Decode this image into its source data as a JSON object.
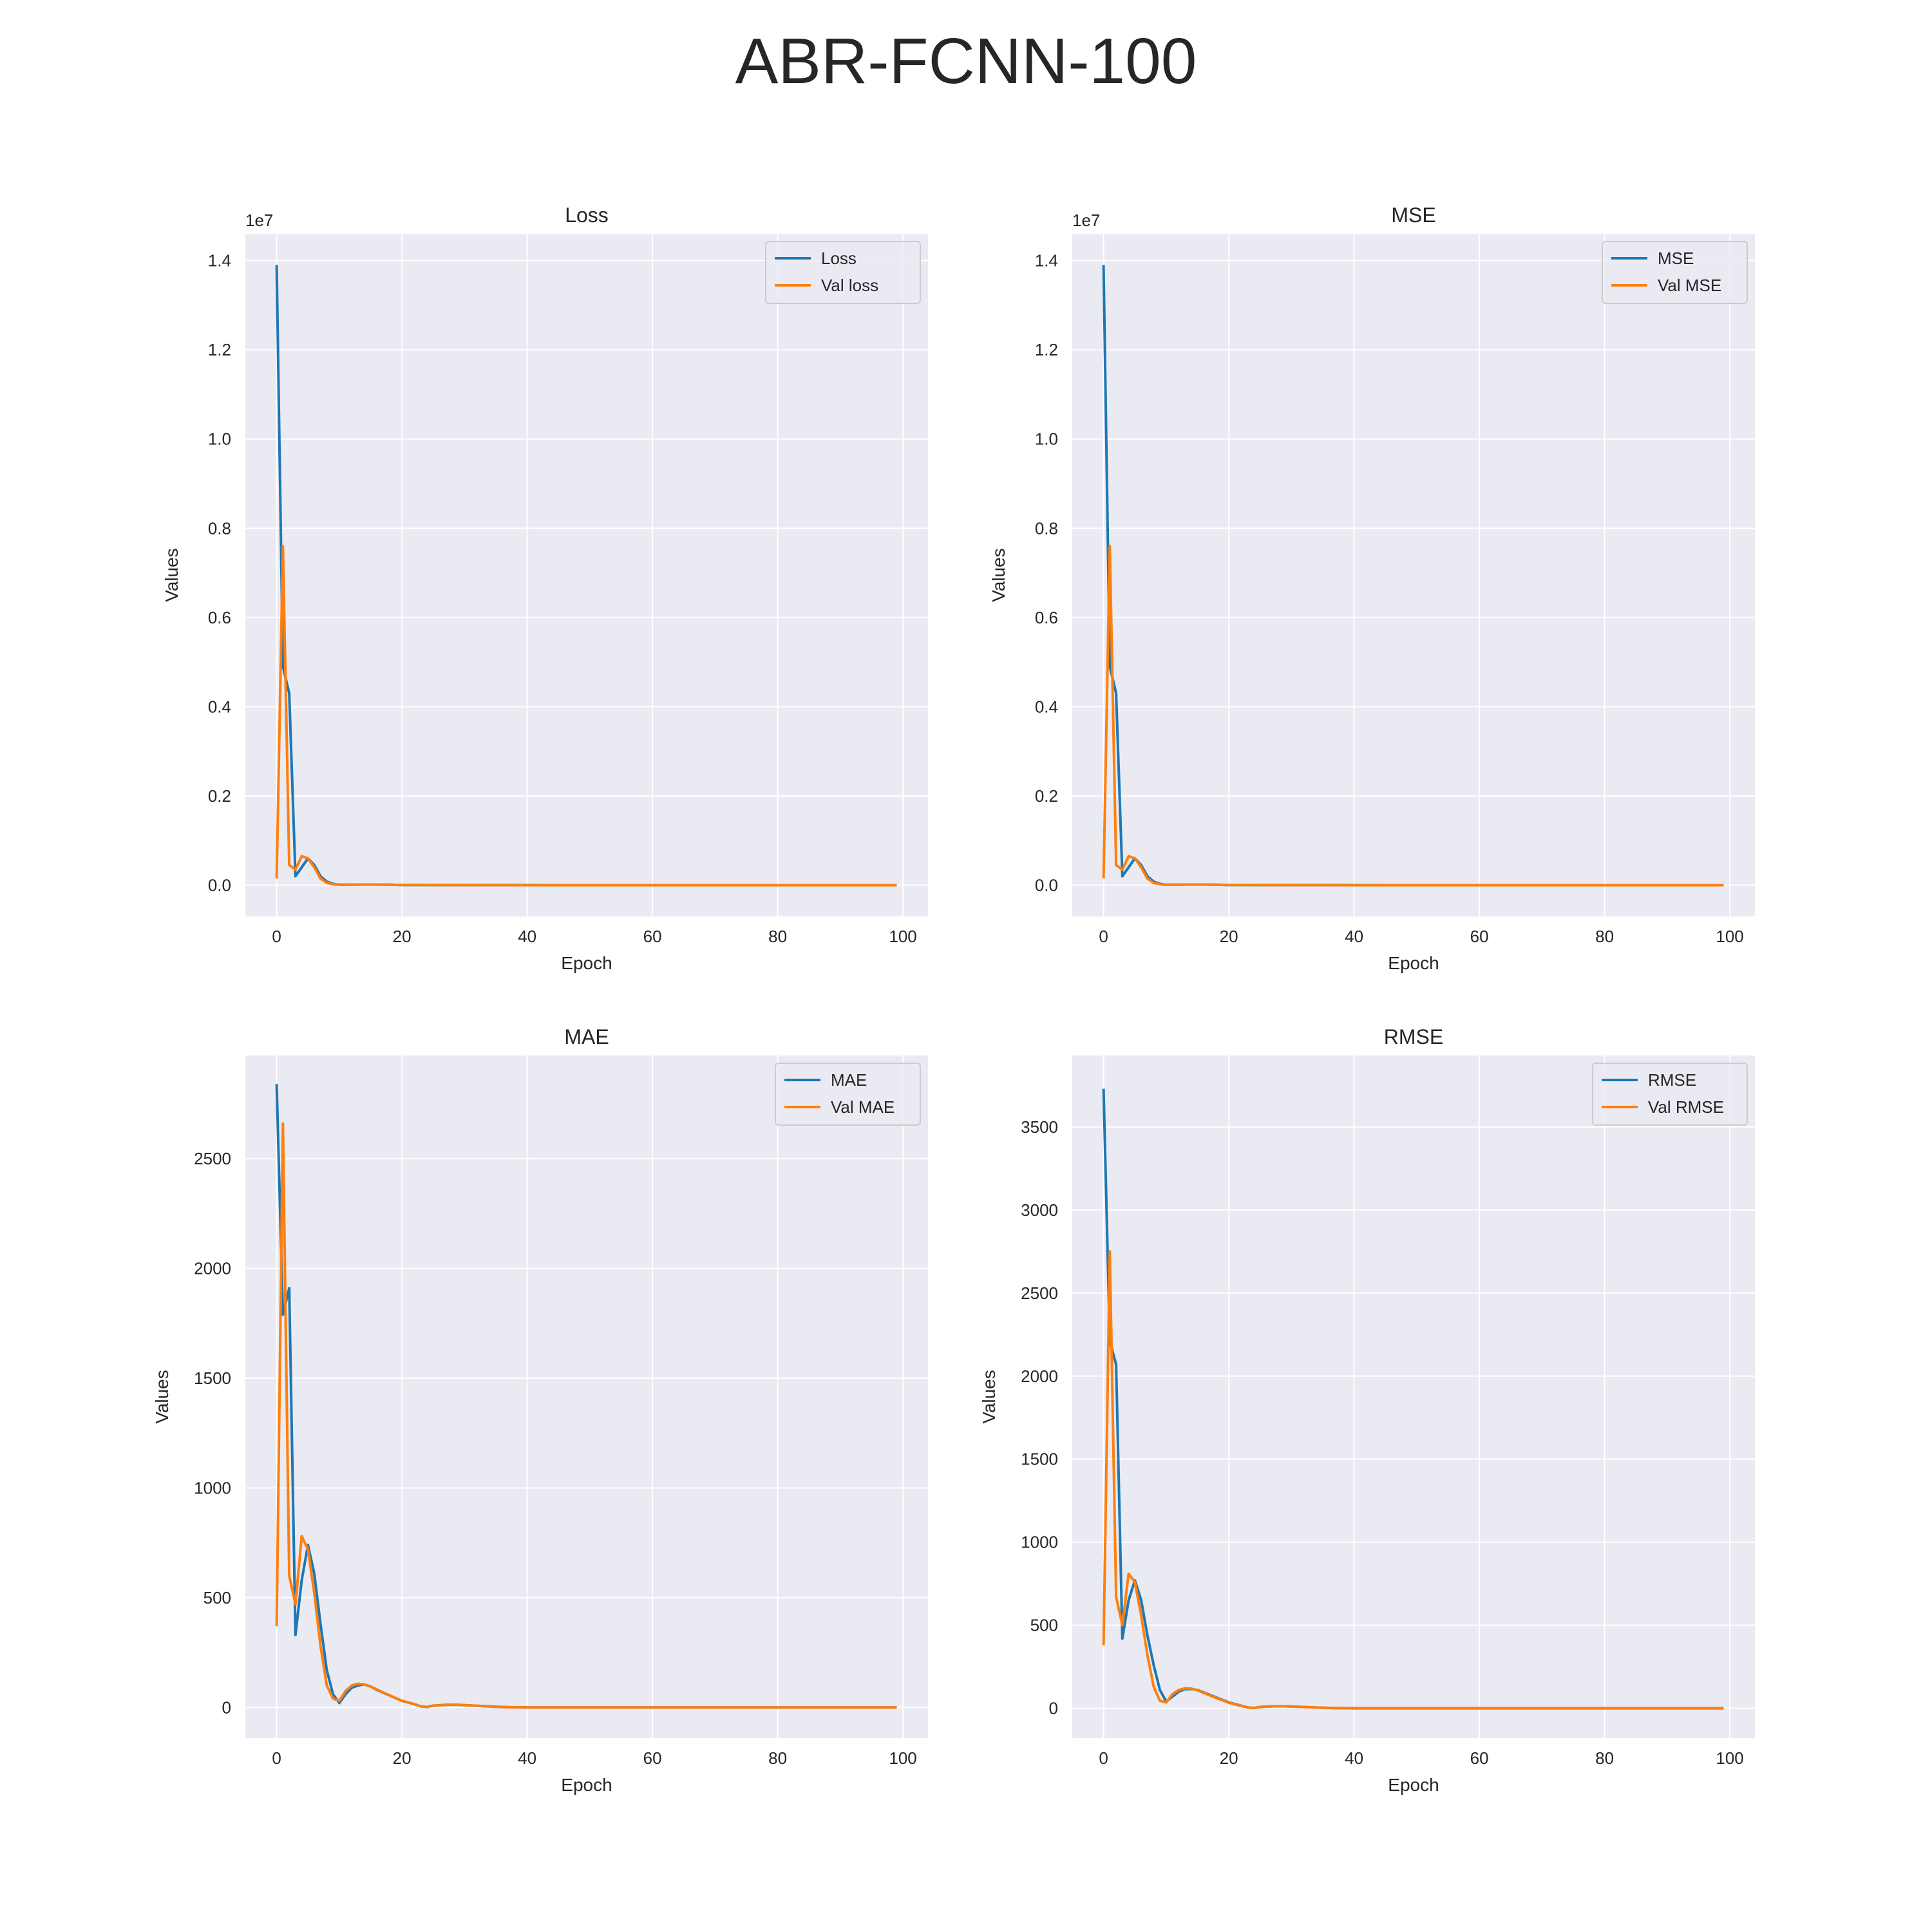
{
  "figure": {
    "suptitle": "ABR-FCNN-100"
  },
  "colors": {
    "train": "#1f77b4",
    "val": "#ff7f0e",
    "plot_bg": "#eaeaf2",
    "grid": "#ffffff"
  },
  "chart_data": [
    {
      "id": "loss",
      "type": "line",
      "title": "Loss",
      "xlabel": "Epoch",
      "ylabel": "Values",
      "offset_text": "1e7",
      "xlim": [
        -5,
        104
      ],
      "ylim": [
        -0.07,
        1.46
      ],
      "xticks": [
        0,
        20,
        40,
        60,
        80,
        100
      ],
      "xtick_labels": [
        "0",
        "20",
        "40",
        "60",
        "80",
        "100"
      ],
      "yticks": [
        0,
        0.2,
        0.4,
        0.6,
        0.8,
        1.0,
        1.2,
        1.4
      ],
      "ytick_labels": [
        "0.0",
        "0.2",
        "0.4",
        "0.6",
        "0.8",
        "1.0",
        "1.2",
        "1.4"
      ],
      "grid": true,
      "legend_position": "top-right",
      "series": [
        {
          "name": "Loss",
          "role": "train",
          "points": [
            [
              0,
              1.39
            ],
            [
              1,
              0.49
            ],
            [
              2,
              0.43
            ],
            [
              3,
              0.02
            ],
            [
              4,
              0.04
            ],
            [
              5,
              0.06
            ],
            [
              6,
              0.045
            ],
            [
              7,
              0.02
            ],
            [
              8,
              0.008
            ],
            [
              9,
              0.003
            ],
            [
              10,
              0.001
            ],
            [
              12,
              0.001
            ],
            [
              15,
              0.0015
            ],
            [
              18,
              0.001
            ],
            [
              20,
              0.0003
            ],
            [
              30,
              0.0001
            ],
            [
              50,
              0
            ],
            [
              99,
              0
            ]
          ]
        },
        {
          "name": "Val loss",
          "role": "val",
          "points": [
            [
              0,
              0.015
            ],
            [
              1,
              0.76
            ],
            [
              2,
              0.045
            ],
            [
              3,
              0.035
            ],
            [
              4,
              0.065
            ],
            [
              5,
              0.06
            ],
            [
              6,
              0.04
            ],
            [
              7,
              0.015
            ],
            [
              8,
              0.005
            ],
            [
              9,
              0.002
            ],
            [
              10,
              0.001
            ],
            [
              12,
              0.0015
            ],
            [
              15,
              0.0015
            ],
            [
              18,
              0.001
            ],
            [
              20,
              0.0003
            ],
            [
              30,
              0.0001
            ],
            [
              50,
              0
            ],
            [
              99,
              0
            ]
          ]
        }
      ]
    },
    {
      "id": "mse",
      "type": "line",
      "title": "MSE",
      "xlabel": "Epoch",
      "ylabel": "Values",
      "offset_text": "1e7",
      "xlim": [
        -5,
        104
      ],
      "ylim": [
        -0.07,
        1.46
      ],
      "xticks": [
        0,
        20,
        40,
        60,
        80,
        100
      ],
      "xtick_labels": [
        "0",
        "20",
        "40",
        "60",
        "80",
        "100"
      ],
      "yticks": [
        0,
        0.2,
        0.4,
        0.6,
        0.8,
        1.0,
        1.2,
        1.4
      ],
      "ytick_labels": [
        "0.0",
        "0.2",
        "0.4",
        "0.6",
        "0.8",
        "1.0",
        "1.2",
        "1.4"
      ],
      "grid": true,
      "legend_position": "top-right",
      "series": [
        {
          "name": "MSE",
          "role": "train",
          "points": [
            [
              0,
              1.39
            ],
            [
              1,
              0.49
            ],
            [
              2,
              0.43
            ],
            [
              3,
              0.02
            ],
            [
              4,
              0.04
            ],
            [
              5,
              0.06
            ],
            [
              6,
              0.045
            ],
            [
              7,
              0.02
            ],
            [
              8,
              0.008
            ],
            [
              9,
              0.003
            ],
            [
              10,
              0.001
            ],
            [
              12,
              0.001
            ],
            [
              15,
              0.0015
            ],
            [
              18,
              0.001
            ],
            [
              20,
              0.0003
            ],
            [
              30,
              0.0001
            ],
            [
              50,
              0
            ],
            [
              99,
              0
            ]
          ]
        },
        {
          "name": "Val MSE",
          "role": "val",
          "points": [
            [
              0,
              0.015
            ],
            [
              1,
              0.76
            ],
            [
              2,
              0.045
            ],
            [
              3,
              0.035
            ],
            [
              4,
              0.065
            ],
            [
              5,
              0.06
            ],
            [
              6,
              0.04
            ],
            [
              7,
              0.015
            ],
            [
              8,
              0.005
            ],
            [
              9,
              0.002
            ],
            [
              10,
              0.001
            ],
            [
              12,
              0.0015
            ],
            [
              15,
              0.0015
            ],
            [
              18,
              0.001
            ],
            [
              20,
              0.0003
            ],
            [
              30,
              0.0001
            ],
            [
              50,
              0
            ],
            [
              99,
              0
            ]
          ]
        }
      ]
    },
    {
      "id": "mae",
      "type": "line",
      "title": "MAE",
      "xlabel": "Epoch",
      "ylabel": "Values",
      "offset_text": "",
      "xlim": [
        -5,
        104
      ],
      "ylim": [
        -140,
        2970
      ],
      "xticks": [
        0,
        20,
        40,
        60,
        80,
        100
      ],
      "xtick_labels": [
        "0",
        "20",
        "40",
        "60",
        "80",
        "100"
      ],
      "yticks": [
        0,
        500,
        1000,
        1500,
        2000,
        2500
      ],
      "ytick_labels": [
        "0",
        "500",
        "1000",
        "1500",
        "2000",
        "2500"
      ],
      "grid": true,
      "legend_position": "top-right",
      "series": [
        {
          "name": "MAE",
          "role": "train",
          "points": [
            [
              0,
              2840
            ],
            [
              1,
              1790
            ],
            [
              2,
              1910
            ],
            [
              3,
              330
            ],
            [
              4,
              580
            ],
            [
              5,
              740
            ],
            [
              6,
              610
            ],
            [
              7,
              380
            ],
            [
              8,
              170
            ],
            [
              9,
              60
            ],
            [
              10,
              20
            ],
            [
              11,
              60
            ],
            [
              12,
              90
            ],
            [
              13,
              100
            ],
            [
              14,
              105
            ],
            [
              15,
              95
            ],
            [
              16,
              80
            ],
            [
              18,
              55
            ],
            [
              20,
              30
            ],
            [
              22,
              15
            ],
            [
              23,
              5
            ],
            [
              24,
              2
            ],
            [
              25,
              8
            ],
            [
              27,
              12
            ],
            [
              29,
              12
            ],
            [
              31,
              9
            ],
            [
              33,
              6
            ],
            [
              35,
              3
            ],
            [
              37,
              1
            ],
            [
              40,
              0
            ],
            [
              99,
              0
            ]
          ]
        },
        {
          "name": "Val MAE",
          "role": "val",
          "points": [
            [
              0,
              370
            ],
            [
              1,
              2660
            ],
            [
              2,
              600
            ],
            [
              3,
              470
            ],
            [
              4,
              780
            ],
            [
              5,
              720
            ],
            [
              6,
              520
            ],
            [
              7,
              280
            ],
            [
              8,
              100
            ],
            [
              9,
              40
            ],
            [
              10,
              30
            ],
            [
              11,
              75
            ],
            [
              12,
              100
            ],
            [
              13,
              108
            ],
            [
              14,
              105
            ],
            [
              15,
              95
            ],
            [
              16,
              82
            ],
            [
              18,
              55
            ],
            [
              20,
              30
            ],
            [
              22,
              15
            ],
            [
              23,
              5
            ],
            [
              24,
              2
            ],
            [
              25,
              8
            ],
            [
              27,
              12
            ],
            [
              29,
              12
            ],
            [
              31,
              9
            ],
            [
              33,
              6
            ],
            [
              35,
              3
            ],
            [
              37,
              1
            ],
            [
              40,
              0
            ],
            [
              99,
              0
            ]
          ]
        }
      ]
    },
    {
      "id": "rmse",
      "type": "line",
      "title": "RMSE",
      "xlabel": "Epoch",
      "ylabel": "Values",
      "offset_text": "",
      "xlim": [
        -5,
        104
      ],
      "ylim": [
        -180,
        3930
      ],
      "xticks": [
        0,
        20,
        40,
        60,
        80,
        100
      ],
      "xtick_labels": [
        "0",
        "20",
        "40",
        "60",
        "80",
        "100"
      ],
      "yticks": [
        0,
        500,
        1000,
        1500,
        2000,
        2500,
        3000,
        3500
      ],
      "ytick_labels": [
        "0",
        "500",
        "1000",
        "1500",
        "2000",
        "2500",
        "3000",
        "3500"
      ],
      "grid": true,
      "legend_position": "top-right",
      "series": [
        {
          "name": "RMSE",
          "role": "train",
          "points": [
            [
              0,
              3730
            ],
            [
              1,
              2210
            ],
            [
              2,
              2070
            ],
            [
              3,
              420
            ],
            [
              4,
              650
            ],
            [
              5,
              770
            ],
            [
              6,
              650
            ],
            [
              7,
              440
            ],
            [
              8,
              260
            ],
            [
              9,
              110
            ],
            [
              10,
              40
            ],
            [
              11,
              70
            ],
            [
              12,
              100
            ],
            [
              13,
              115
            ],
            [
              14,
              115
            ],
            [
              15,
              110
            ],
            [
              16,
              95
            ],
            [
              18,
              65
            ],
            [
              20,
              35
            ],
            [
              22,
              15
            ],
            [
              23,
              5
            ],
            [
              24,
              2
            ],
            [
              25,
              8
            ],
            [
              27,
              12
            ],
            [
              29,
              12
            ],
            [
              31,
              9
            ],
            [
              33,
              6
            ],
            [
              35,
              3
            ],
            [
              37,
              1
            ],
            [
              40,
              0
            ],
            [
              99,
              0
            ]
          ]
        },
        {
          "name": "Val RMSE",
          "role": "val",
          "points": [
            [
              0,
              380
            ],
            [
              1,
              2750
            ],
            [
              2,
              670
            ],
            [
              3,
              500
            ],
            [
              4,
              810
            ],
            [
              5,
              760
            ],
            [
              6,
              560
            ],
            [
              7,
              320
            ],
            [
              8,
              130
            ],
            [
              9,
              45
            ],
            [
              10,
              35
            ],
            [
              11,
              85
            ],
            [
              12,
              110
            ],
            [
              13,
              120
            ],
            [
              14,
              118
            ],
            [
              15,
              108
            ],
            [
              16,
              92
            ],
            [
              18,
              62
            ],
            [
              20,
              33
            ],
            [
              22,
              14
            ],
            [
              23,
              5
            ],
            [
              24,
              2
            ],
            [
              25,
              8
            ],
            [
              27,
              12
            ],
            [
              29,
              12
            ],
            [
              31,
              9
            ],
            [
              33,
              6
            ],
            [
              35,
              3
            ],
            [
              37,
              1
            ],
            [
              40,
              0
            ],
            [
              99,
              0
            ]
          ]
        }
      ]
    }
  ]
}
